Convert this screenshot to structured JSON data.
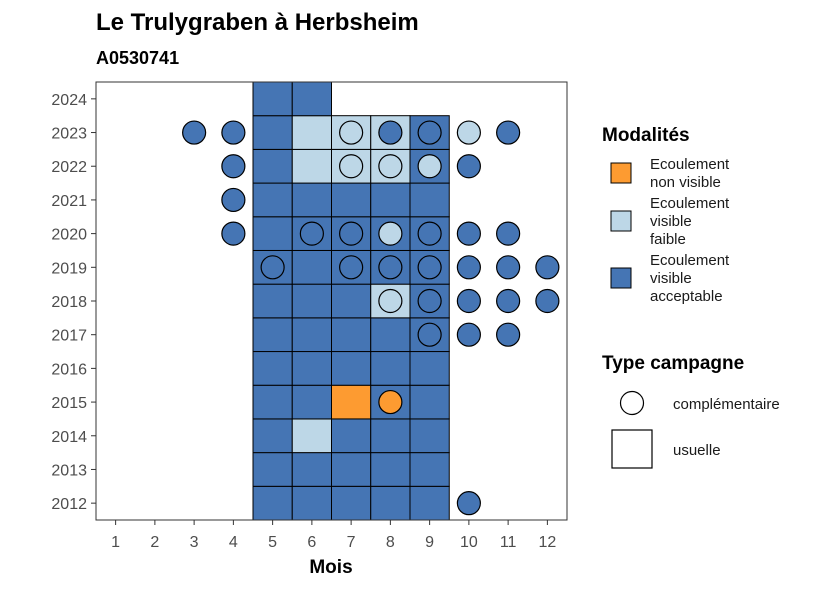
{
  "chart_data": {
    "type": "heatmap",
    "title": "Le Trulygraben à Herbsheim",
    "subtitle": "A0530741",
    "xlabel": "Mois",
    "ylabel": "",
    "x_ticks": [
      1,
      2,
      3,
      4,
      5,
      6,
      7,
      8,
      9,
      10,
      11,
      12
    ],
    "y_ticks": [
      2012,
      2013,
      2014,
      2015,
      2016,
      2017,
      2018,
      2019,
      2020,
      2021,
      2022,
      2023,
      2024
    ],
    "xlim": [
      0.5,
      12.5
    ],
    "ylim": [
      2011.5,
      2024.5
    ],
    "colors": {
      "Ecoulement non visible": "#fd9b31",
      "Ecoulement visible faible": "#bdd7e7",
      "Ecoulement visible acceptable": "#4575b4"
    },
    "usuelle": [
      {
        "month": 5,
        "year": 2012,
        "status": "Ecoulement visible acceptable"
      },
      {
        "month": 6,
        "year": 2012,
        "status": "Ecoulement visible acceptable"
      },
      {
        "month": 7,
        "year": 2012,
        "status": "Ecoulement visible acceptable"
      },
      {
        "month": 8,
        "year": 2012,
        "status": "Ecoulement visible acceptable"
      },
      {
        "month": 9,
        "year": 2012,
        "status": "Ecoulement visible acceptable"
      },
      {
        "month": 5,
        "year": 2013,
        "status": "Ecoulement visible acceptable"
      },
      {
        "month": 6,
        "year": 2013,
        "status": "Ecoulement visible acceptable"
      },
      {
        "month": 7,
        "year": 2013,
        "status": "Ecoulement visible acceptable"
      },
      {
        "month": 8,
        "year": 2013,
        "status": "Ecoulement visible acceptable"
      },
      {
        "month": 9,
        "year": 2013,
        "status": "Ecoulement visible acceptable"
      },
      {
        "month": 5,
        "year": 2014,
        "status": "Ecoulement visible acceptable"
      },
      {
        "month": 6,
        "year": 2014,
        "status": "Ecoulement visible faible"
      },
      {
        "month": 7,
        "year": 2014,
        "status": "Ecoulement visible acceptable"
      },
      {
        "month": 8,
        "year": 2014,
        "status": "Ecoulement visible acceptable"
      },
      {
        "month": 9,
        "year": 2014,
        "status": "Ecoulement visible acceptable"
      },
      {
        "month": 5,
        "year": 2015,
        "status": "Ecoulement visible acceptable"
      },
      {
        "month": 6,
        "year": 2015,
        "status": "Ecoulement visible acceptable"
      },
      {
        "month": 7,
        "year": 2015,
        "status": "Ecoulement non visible"
      },
      {
        "month": 8,
        "year": 2015,
        "status": "Ecoulement visible acceptable"
      },
      {
        "month": 9,
        "year": 2015,
        "status": "Ecoulement visible acceptable"
      },
      {
        "month": 5,
        "year": 2016,
        "status": "Ecoulement visible acceptable"
      },
      {
        "month": 6,
        "year": 2016,
        "status": "Ecoulement visible acceptable"
      },
      {
        "month": 7,
        "year": 2016,
        "status": "Ecoulement visible acceptable"
      },
      {
        "month": 8,
        "year": 2016,
        "status": "Ecoulement visible acceptable"
      },
      {
        "month": 9,
        "year": 2016,
        "status": "Ecoulement visible acceptable"
      },
      {
        "month": 5,
        "year": 2017,
        "status": "Ecoulement visible acceptable"
      },
      {
        "month": 6,
        "year": 2017,
        "status": "Ecoulement visible acceptable"
      },
      {
        "month": 7,
        "year": 2017,
        "status": "Ecoulement visible acceptable"
      },
      {
        "month": 8,
        "year": 2017,
        "status": "Ecoulement visible acceptable"
      },
      {
        "month": 9,
        "year": 2017,
        "status": "Ecoulement visible acceptable"
      },
      {
        "month": 5,
        "year": 2018,
        "status": "Ecoulement visible acceptable"
      },
      {
        "month": 6,
        "year": 2018,
        "status": "Ecoulement visible acceptable"
      },
      {
        "month": 7,
        "year": 2018,
        "status": "Ecoulement visible acceptable"
      },
      {
        "month": 8,
        "year": 2018,
        "status": "Ecoulement visible faible"
      },
      {
        "month": 9,
        "year": 2018,
        "status": "Ecoulement visible acceptable"
      },
      {
        "month": 5,
        "year": 2019,
        "status": "Ecoulement visible acceptable"
      },
      {
        "month": 6,
        "year": 2019,
        "status": "Ecoulement visible acceptable"
      },
      {
        "month": 7,
        "year": 2019,
        "status": "Ecoulement visible acceptable"
      },
      {
        "month": 8,
        "year": 2019,
        "status": "Ecoulement visible acceptable"
      },
      {
        "month": 9,
        "year": 2019,
        "status": "Ecoulement visible acceptable"
      },
      {
        "month": 5,
        "year": 2020,
        "status": "Ecoulement visible acceptable"
      },
      {
        "month": 6,
        "year": 2020,
        "status": "Ecoulement visible acceptable"
      },
      {
        "month": 7,
        "year": 2020,
        "status": "Ecoulement visible acceptable"
      },
      {
        "month": 8,
        "year": 2020,
        "status": "Ecoulement visible acceptable"
      },
      {
        "month": 9,
        "year": 2020,
        "status": "Ecoulement visible acceptable"
      },
      {
        "month": 5,
        "year": 2021,
        "status": "Ecoulement visible acceptable"
      },
      {
        "month": 6,
        "year": 2021,
        "status": "Ecoulement visible acceptable"
      },
      {
        "month": 7,
        "year": 2021,
        "status": "Ecoulement visible acceptable"
      },
      {
        "month": 8,
        "year": 2021,
        "status": "Ecoulement visible acceptable"
      },
      {
        "month": 9,
        "year": 2021,
        "status": "Ecoulement visible acceptable"
      },
      {
        "month": 5,
        "year": 2022,
        "status": "Ecoulement visible acceptable"
      },
      {
        "month": 6,
        "year": 2022,
        "status": "Ecoulement visible faible"
      },
      {
        "month": 7,
        "year": 2022,
        "status": "Ecoulement visible faible"
      },
      {
        "month": 8,
        "year": 2022,
        "status": "Ecoulement visible faible"
      },
      {
        "month": 9,
        "year": 2022,
        "status": "Ecoulement visible acceptable"
      },
      {
        "month": 5,
        "year": 2023,
        "status": "Ecoulement visible acceptable"
      },
      {
        "month": 6,
        "year": 2023,
        "status": "Ecoulement visible faible"
      },
      {
        "month": 7,
        "year": 2023,
        "status": "Ecoulement visible faible"
      },
      {
        "month": 8,
        "year": 2023,
        "status": "Ecoulement visible faible"
      },
      {
        "month": 9,
        "year": 2023,
        "status": "Ecoulement visible acceptable"
      },
      {
        "month": 5,
        "year": 2024,
        "status": "Ecoulement visible acceptable"
      },
      {
        "month": 6,
        "year": 2024,
        "status": "Ecoulement visible acceptable"
      }
    ],
    "complementaire": [
      {
        "month": 10,
        "year": 2012,
        "status": "Ecoulement visible acceptable"
      },
      {
        "month": 8,
        "year": 2015,
        "status": "Ecoulement non visible"
      },
      {
        "month": 9,
        "year": 2017,
        "status": "Ecoulement visible acceptable"
      },
      {
        "month": 10,
        "year": 2017,
        "status": "Ecoulement visible acceptable"
      },
      {
        "month": 11,
        "year": 2017,
        "status": "Ecoulement visible acceptable"
      },
      {
        "month": 8,
        "year": 2018,
        "status": "Ecoulement visible faible"
      },
      {
        "month": 9,
        "year": 2018,
        "status": "Ecoulement visible acceptable"
      },
      {
        "month": 10,
        "year": 2018,
        "status": "Ecoulement visible acceptable"
      },
      {
        "month": 11,
        "year": 2018,
        "status": "Ecoulement visible acceptable"
      },
      {
        "month": 12,
        "year": 2018,
        "status": "Ecoulement visible acceptable"
      },
      {
        "month": 5,
        "year": 2019,
        "status": "Ecoulement visible acceptable"
      },
      {
        "month": 7,
        "year": 2019,
        "status": "Ecoulement visible acceptable"
      },
      {
        "month": 8,
        "year": 2019,
        "status": "Ecoulement visible acceptable"
      },
      {
        "month": 9,
        "year": 2019,
        "status": "Ecoulement visible acceptable"
      },
      {
        "month": 10,
        "year": 2019,
        "status": "Ecoulement visible acceptable"
      },
      {
        "month": 11,
        "year": 2019,
        "status": "Ecoulement visible acceptable"
      },
      {
        "month": 12,
        "year": 2019,
        "status": "Ecoulement visible acceptable"
      },
      {
        "month": 4,
        "year": 2020,
        "status": "Ecoulement visible acceptable"
      },
      {
        "month": 6,
        "year": 2020,
        "status": "Ecoulement visible acceptable"
      },
      {
        "month": 7,
        "year": 2020,
        "status": "Ecoulement visible acceptable"
      },
      {
        "month": 8,
        "year": 2020,
        "status": "Ecoulement visible faible"
      },
      {
        "month": 9,
        "year": 2020,
        "status": "Ecoulement visible acceptable"
      },
      {
        "month": 10,
        "year": 2020,
        "status": "Ecoulement visible acceptable"
      },
      {
        "month": 11,
        "year": 2020,
        "status": "Ecoulement visible acceptable"
      },
      {
        "month": 4,
        "year": 2021,
        "status": "Ecoulement visible acceptable"
      },
      {
        "month": 4,
        "year": 2022,
        "status": "Ecoulement visible acceptable"
      },
      {
        "month": 7,
        "year": 2022,
        "status": "Ecoulement visible faible"
      },
      {
        "month": 8,
        "year": 2022,
        "status": "Ecoulement visible faible"
      },
      {
        "month": 9,
        "year": 2022,
        "status": "Ecoulement visible faible"
      },
      {
        "month": 10,
        "year": 2022,
        "status": "Ecoulement visible acceptable"
      },
      {
        "month": 3,
        "year": 2023,
        "status": "Ecoulement visible acceptable"
      },
      {
        "month": 4,
        "year": 2023,
        "status": "Ecoulement visible acceptable"
      },
      {
        "month": 7,
        "year": 2023,
        "status": "Ecoulement visible faible"
      },
      {
        "month": 8,
        "year": 2023,
        "status": "Ecoulement visible acceptable"
      },
      {
        "month": 9,
        "year": 2023,
        "status": "Ecoulement visible acceptable"
      },
      {
        "month": 10,
        "year": 2023,
        "status": "Ecoulement visible faible"
      },
      {
        "month": 11,
        "year": 2023,
        "status": "Ecoulement visible acceptable"
      }
    ],
    "legend": {
      "placement": "right",
      "modalites_title": "Modalités",
      "modalites": [
        {
          "lines": [
            "Ecoulement",
            "non visible"
          ],
          "color": "#fd9b31"
        },
        {
          "lines": [
            "Ecoulement",
            "visible",
            "faible"
          ],
          "color": "#bdd7e7"
        },
        {
          "lines": [
            "Ecoulement",
            "visible",
            "acceptable"
          ],
          "color": "#4575b4"
        }
      ],
      "type_title": "Type campagne",
      "types": [
        {
          "label": "complémentaire",
          "shape": "circle"
        },
        {
          "label": "usuelle",
          "shape": "square"
        }
      ]
    }
  }
}
